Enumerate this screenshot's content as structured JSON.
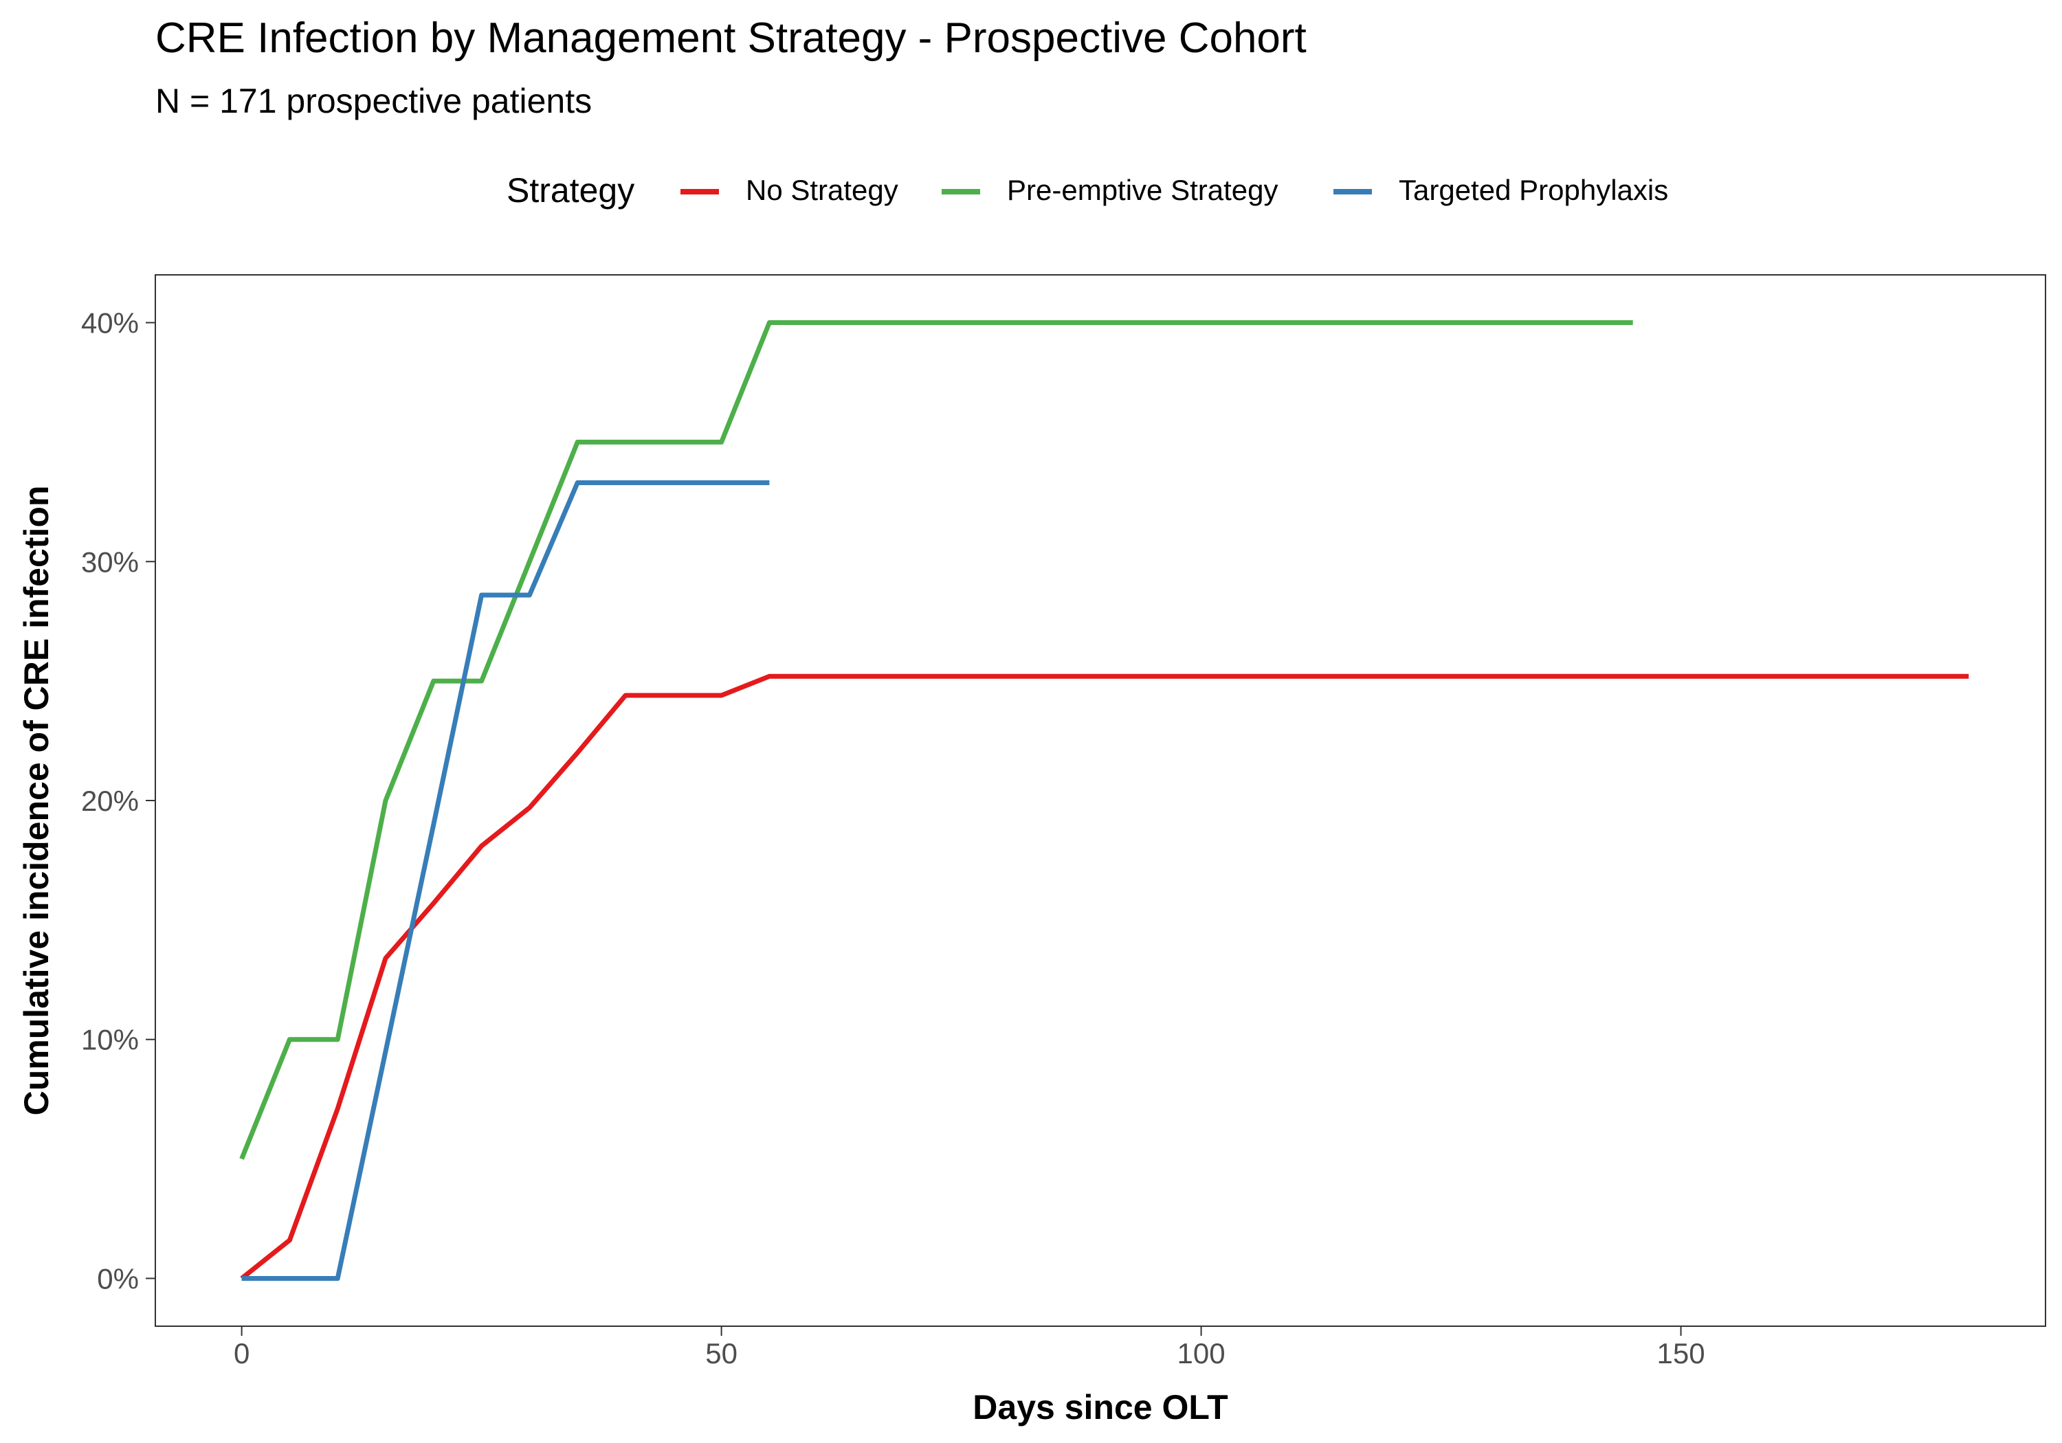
{
  "chart_data": {
    "type": "line",
    "title": "CRE Infection by Management Strategy - Prospective Cohort",
    "subtitle": "N = 171 prospective patients",
    "xlabel": "Days since OLT",
    "ylabel": "Cumulative incidence of CRE infection",
    "xlim": [
      -9,
      188
    ],
    "ylim": [
      -0.02,
      0.42
    ],
    "x_ticks": [
      0,
      50,
      100,
      150
    ],
    "x_tick_labels": [
      "0",
      "50",
      "100",
      "150"
    ],
    "y_ticks": [
      0,
      0.1,
      0.2,
      0.3,
      0.4
    ],
    "y_tick_labels": [
      "0%",
      "10%",
      "20%",
      "30%",
      "40%"
    ],
    "grid": false,
    "legend": {
      "title": "Strategy",
      "position": "top"
    },
    "series": [
      {
        "name": "No Strategy",
        "color": "#e41a1c",
        "x": [
          0,
          5,
          10,
          15,
          20,
          25,
          30,
          35,
          40,
          45,
          50,
          55,
          180
        ],
        "y": [
          0,
          0.016,
          0.071,
          0.134,
          0.157,
          0.181,
          0.197,
          0.22,
          0.244,
          0.244,
          0.244,
          0.252,
          0.252
        ]
      },
      {
        "name": "Pre-emptive Strategy",
        "color": "#4daf4a",
        "x": [
          0,
          5,
          10,
          15,
          20,
          25,
          30,
          35,
          40,
          45,
          50,
          55,
          145
        ],
        "y": [
          0.05,
          0.1,
          0.1,
          0.2,
          0.25,
          0.25,
          0.3,
          0.35,
          0.35,
          0.35,
          0.35,
          0.4,
          0.4
        ]
      },
      {
        "name": "Targeted Prophylaxis",
        "color": "#377eb8",
        "x": [
          0,
          5,
          10,
          15,
          20,
          25,
          30,
          35,
          40,
          45,
          50,
          55
        ],
        "y": [
          0,
          0,
          0,
          0.095,
          0.19,
          0.286,
          0.286,
          0.333,
          0.333,
          0.333,
          0.333,
          0.333
        ]
      }
    ]
  }
}
